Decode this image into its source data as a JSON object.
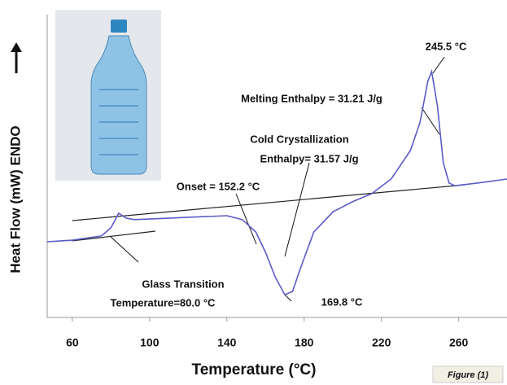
{
  "chart_data": {
    "type": "line",
    "x_label": "Temperature (°C)",
    "y_label": "Heat Flow (mW) ENDO",
    "figure_label": "Figure (1)",
    "xlim": [
      47,
      285
    ],
    "ylim": [
      0,
      100
    ],
    "xticks": [
      60,
      100,
      140,
      180,
      220,
      260
    ],
    "series": [
      {
        "color": "#5b5bc8",
        "x": [
          47,
          60,
          75,
          80,
          84,
          88,
          92,
          100,
          120,
          140,
          148,
          155,
          160,
          165,
          170,
          174,
          178,
          185,
          195,
          205,
          215,
          225,
          235,
          240,
          244,
          246,
          249,
          252,
          255,
          258,
          270,
          285
        ],
        "values": [
          25.0,
          25.5,
          26.9,
          29.6,
          34.4,
          32.8,
          32.3,
          32.5,
          33.1,
          33.6,
          32.3,
          28.2,
          21.5,
          13.4,
          7.5,
          8.6,
          16.1,
          28.2,
          34.9,
          38.2,
          40.9,
          45.7,
          55.1,
          64.5,
          78.0,
          81.2,
          69.9,
          51.1,
          44.4,
          43.5,
          44.4,
          45.7
        ]
      }
    ],
    "baselines": [
      {
        "color": "#222222",
        "x": [
          60,
          263
        ],
        "values": [
          32.0,
          43.8
        ]
      },
      {
        "color": "#222222",
        "x": [
          60,
          103
        ],
        "values": [
          25.3,
          28.5
        ]
      }
    ],
    "annotations": [
      "245.5 °C",
      "Melting Enthalpy = 31.21  J/g",
      "Cold Crystallization",
      "Enthalpy= 31.57  J/g",
      "Onset = 152.2 °C",
      "169.8 °C",
      "Glass Transition",
      "Temperature=80.0 °C"
    ]
  }
}
